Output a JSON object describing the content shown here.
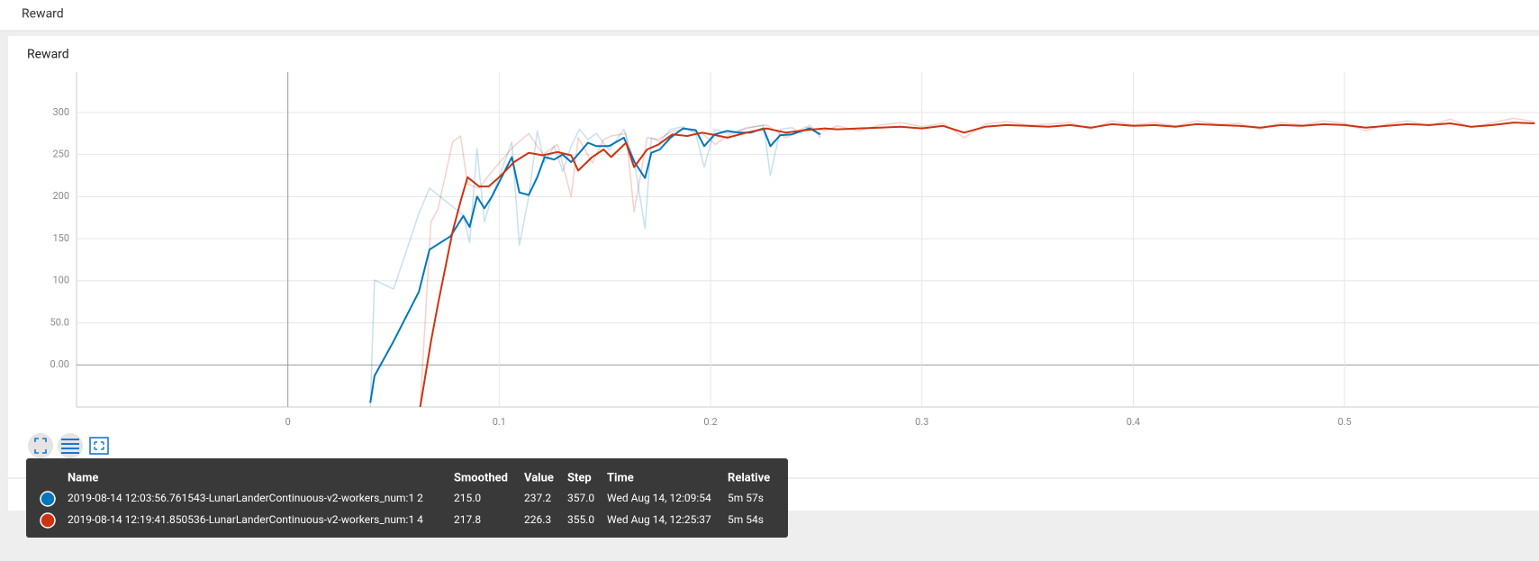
{
  "header": {
    "title": "Reward"
  },
  "chart_data": {
    "type": "line",
    "title": "Reward",
    "xlim": [
      -0.1,
      0.592
    ],
    "xticks": [
      0,
      0.1,
      0.2,
      0.3,
      0.4,
      0.5
    ],
    "ylim": [
      -50,
      348
    ],
    "yticks": [
      {
        "value": 0,
        "label": "0.00"
      },
      {
        "value": 50,
        "label": "50.0"
      },
      100,
      150,
      200,
      250,
      300
    ],
    "grid": true,
    "series": [
      {
        "name": "2019-08-14 12:03:56.761543-LunarLanderContinuous-v2-workers_num:1 2",
        "color": "#0077bb",
        "x": [
          0.039,
          0.041,
          0.05,
          0.062,
          0.067,
          0.077,
          0.083,
          0.086,
          0.0895,
          0.093,
          0.0965,
          0.106,
          0.1095,
          0.114,
          0.118,
          0.1215,
          0.126,
          0.13,
          0.134,
          0.138,
          0.142,
          0.146,
          0.152,
          0.159,
          0.164,
          0.169,
          0.172,
          0.176,
          0.181,
          0.187,
          0.193,
          0.197,
          0.202,
          0.208,
          0.213,
          0.219,
          0.225,
          0.2283,
          0.233,
          0.2385,
          0.243,
          0.247,
          0.252
        ],
        "values": [
          -45,
          -13,
          28,
          87,
          137,
          153,
          177,
          164,
          200,
          186,
          200,
          247,
          205,
          202,
          223,
          247,
          244,
          250,
          241,
          252,
          264,
          260,
          260,
          270,
          241,
          222,
          252,
          256,
          270,
          281,
          279,
          260,
          274,
          278,
          276,
          276,
          281,
          260,
          273,
          274,
          278,
          281,
          274
        ],
        "raw_values": [
          -50,
          101,
          90,
          180,
          210,
          190,
          178,
          145,
          257,
          170,
          200,
          265,
          142,
          200,
          278,
          240,
          260,
          230,
          260,
          280,
          268,
          275,
          255,
          280,
          240,
          162,
          270,
          265,
          280,
          283,
          275,
          235,
          280,
          275,
          278,
          282,
          285,
          225,
          280,
          282,
          275,
          285,
          270
        ]
      },
      {
        "name": "2019-08-14 12:19:41.850536-LunarLanderContinuous-v2-workers_num:1 4",
        "color": "#cc3311",
        "x": [
          0.0626,
          0.0677,
          0.071,
          0.078,
          0.0817,
          0.085,
          0.0905,
          0.095,
          0.1,
          0.107,
          0.114,
          0.1206,
          0.1276,
          0.134,
          0.1374,
          0.144,
          0.1494,
          0.153,
          0.16,
          0.1638,
          0.17,
          0.1754,
          0.182,
          0.189,
          0.196,
          0.2023,
          0.208,
          0.217,
          0.2265,
          0.2357,
          0.245,
          0.254,
          0.26,
          0.27,
          0.28,
          0.29,
          0.3,
          0.31,
          0.32,
          0.33,
          0.34,
          0.35,
          0.36,
          0.37,
          0.38,
          0.39,
          0.4,
          0.41,
          0.42,
          0.43,
          0.44,
          0.45,
          0.46,
          0.47,
          0.48,
          0.49,
          0.5,
          0.51,
          0.52,
          0.53,
          0.54,
          0.55,
          0.56,
          0.57,
          0.58,
          0.59
        ],
        "values": [
          -50,
          28,
          72,
          159,
          194,
          223,
          212,
          212,
          223,
          241,
          252,
          249,
          253,
          249,
          231,
          247,
          256,
          247,
          264,
          235,
          256,
          262,
          274,
          272,
          276,
          273,
          270,
          276,
          281,
          276,
          279,
          281,
          280,
          281,
          282,
          283,
          281,
          284,
          276,
          283,
          285,
          284,
          283,
          285,
          282,
          286,
          284,
          285,
          283,
          286,
          285,
          284,
          282,
          285,
          284,
          286,
          285,
          282,
          284,
          286,
          285,
          287,
          283,
          285,
          288,
          287
        ],
        "raw_values": [
          -50,
          170,
          185,
          265,
          272,
          215,
          210,
          225,
          240,
          260,
          275,
          250,
          262,
          200,
          270,
          240,
          268,
          272,
          275,
          182,
          270,
          268,
          278,
          280,
          275,
          262,
          272,
          282,
          285,
          270,
          283,
          278,
          284,
          278,
          285,
          288,
          283,
          287,
          270,
          286,
          289,
          285,
          286,
          288,
          280,
          290,
          285,
          288,
          284,
          290,
          286,
          287,
          280,
          288,
          285,
          290,
          287,
          278,
          286,
          290,
          284,
          292,
          282,
          288,
          293,
          289
        ]
      }
    ]
  },
  "tooltip": {
    "columns": [
      "Name",
      "Smoothed",
      "Value",
      "Step",
      "Time",
      "Relative"
    ],
    "rows": [
      [
        "2019-08-14 12:03:56.761543-LunarLanderContinuous-v2-workers_num:1 2",
        "215.0",
        "237.2",
        "357.0",
        "Wed Aug 14, 12:09:54",
        "5m 57s"
      ],
      [
        "2019-08-14 12:19:41.850536-LunarLanderContinuous-v2-workers_num:1 4",
        "217.8",
        "226.3",
        "355.0",
        "Wed Aug 14, 12:25:37",
        "5m 54s"
      ]
    ]
  }
}
